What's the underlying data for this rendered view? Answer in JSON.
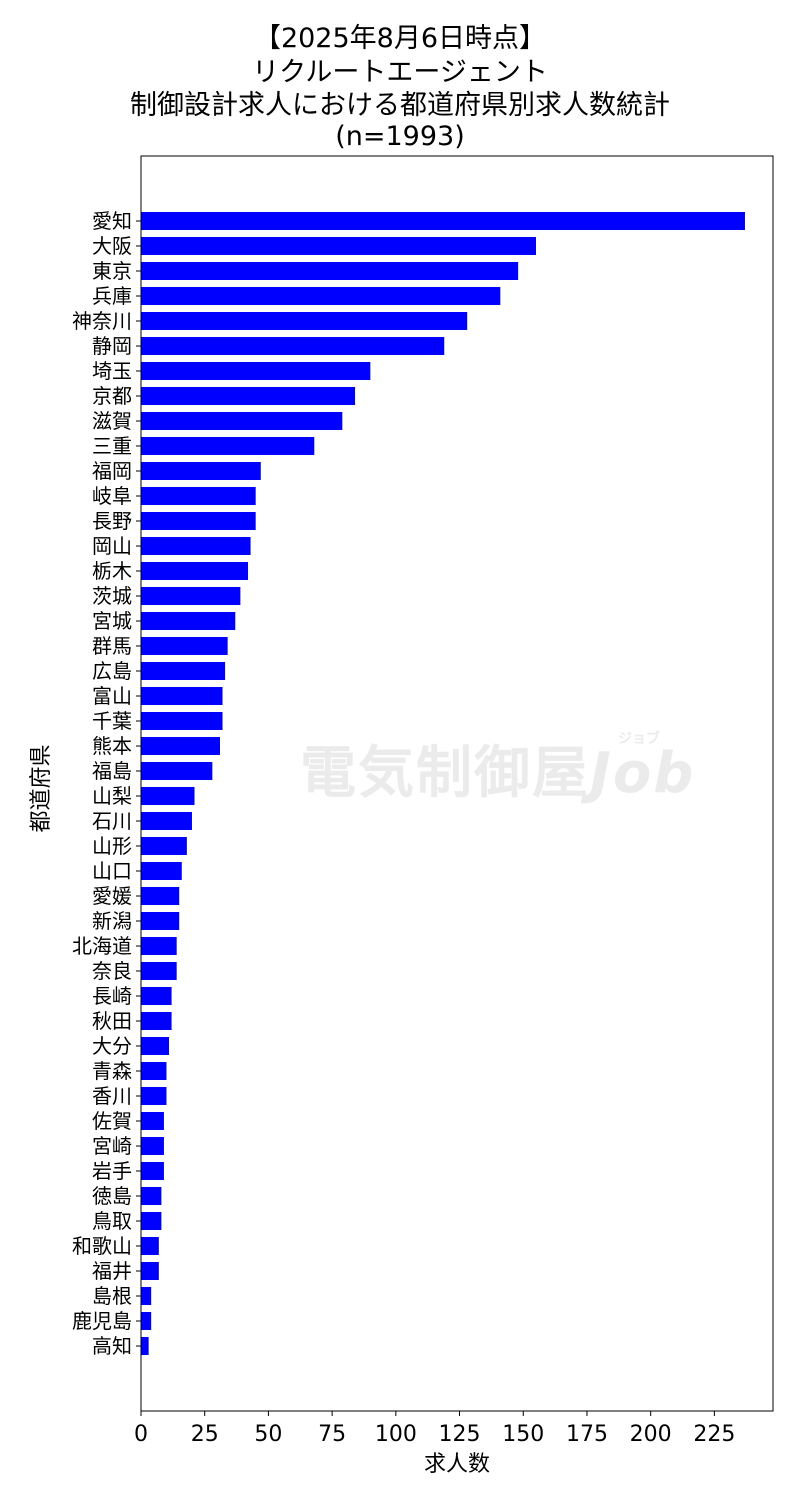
{
  "chart_data": {
    "type": "bar",
    "orientation": "horizontal",
    "title_lines": [
      "【2025年8月6日時点】",
      "リクルートエージェント",
      "制御設計求人における都道府県別求人数統計",
      "(n=1993)"
    ],
    "xlabel": "求人数",
    "ylabel": "都道府県",
    "xlim": [
      0,
      248
    ],
    "xticks": [
      0,
      25,
      50,
      75,
      100,
      125,
      150,
      175,
      200,
      225
    ],
    "color": "#0000ff",
    "grid": false,
    "categories": [
      "愛知",
      "大阪",
      "東京",
      "兵庫",
      "神奈川",
      "静岡",
      "埼玉",
      "京都",
      "滋賀",
      "三重",
      "福岡",
      "岐阜",
      "長野",
      "岡山",
      "栃木",
      "茨城",
      "宮城",
      "群馬",
      "広島",
      "富山",
      "千葉",
      "熊本",
      "福島",
      "山梨",
      "石川",
      "山形",
      "山口",
      "愛媛",
      "新潟",
      "北海道",
      "奈良",
      "長崎",
      "秋田",
      "大分",
      "青森",
      "香川",
      "佐賀",
      "宮崎",
      "岩手",
      "徳島",
      "鳥取",
      "和歌山",
      "福井",
      "島根",
      "鹿児島",
      "高知"
    ],
    "values": [
      237,
      155,
      148,
      141,
      128,
      119,
      90,
      84,
      79,
      68,
      47,
      45,
      45,
      43,
      42,
      39,
      37,
      34,
      33,
      32,
      32,
      31,
      28,
      21,
      20,
      18,
      16,
      15,
      15,
      14,
      14,
      12,
      12,
      11,
      10,
      10,
      9,
      9,
      9,
      8,
      8,
      7,
      7,
      4,
      4,
      3
    ]
  },
  "watermark": {
    "text": "電気制御屋",
    "suffix": "Job",
    "ruby": "ジョブ"
  }
}
